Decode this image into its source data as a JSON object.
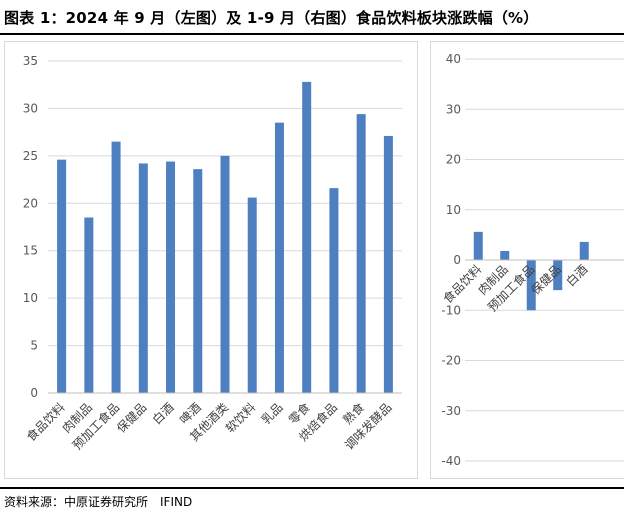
{
  "header": {
    "title": "图表 1：2024 年 9 月（左图）及 1-9 月（右图）食品饮料板块涨跌幅（%）"
  },
  "footer": {
    "source": "资料来源：中原证券研究所　IFIND"
  },
  "chart_data": [
    {
      "type": "bar",
      "categories": [
        "食品饮料",
        "肉制品",
        "预加工食品",
        "保健品",
        "白酒",
        "啤酒",
        "其他酒类",
        "软饮料",
        "乳品",
        "零食",
        "烘焙食品",
        "熟食",
        "调味发酵品"
      ],
      "values": [
        24.6,
        18.5,
        26.5,
        24.2,
        24.4,
        23.6,
        25.0,
        20.6,
        28.5,
        32.8,
        21.6,
        29.4,
        27.1
      ],
      "ylim": [
        0,
        35
      ],
      "yticks": [
        0,
        5,
        10,
        15,
        20,
        25,
        30,
        35
      ],
      "xlabel": "",
      "ylabel": "",
      "grid": true,
      "color": "#4e7fc0"
    },
    {
      "type": "bar",
      "categories": [
        "食品饮料",
        "肉制品",
        "预加工食品",
        "保健品",
        "白酒"
      ],
      "values": [
        5.6,
        1.8,
        -10.0,
        -6.0,
        3.6
      ],
      "ylim": [
        -40,
        40
      ],
      "yticks": [
        -40,
        -30,
        -20,
        -10,
        0,
        10,
        20,
        30,
        40
      ],
      "xlabel": "",
      "ylabel": "",
      "grid": true,
      "color": "#4e7fc0"
    }
  ]
}
